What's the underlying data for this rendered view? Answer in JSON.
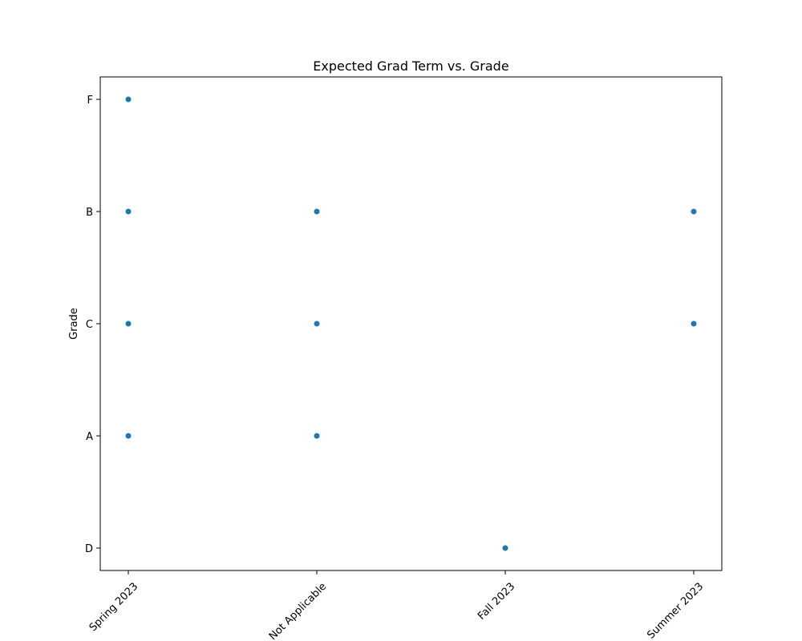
{
  "chart_data": {
    "type": "scatter",
    "title": "Expected Grad Term vs. Grade",
    "xlabel": "",
    "ylabel": "Grade",
    "x_categories": [
      "Spring 2023",
      "Not Applicable",
      "Fall 2023",
      "Summer 2023"
    ],
    "y_categories": [
      "D",
      "A",
      "C",
      "B",
      "F"
    ],
    "points": [
      {
        "x": "Spring 2023",
        "y": "F"
      },
      {
        "x": "Spring 2023",
        "y": "B"
      },
      {
        "x": "Spring 2023",
        "y": "C"
      },
      {
        "x": "Spring 2023",
        "y": "A"
      },
      {
        "x": "Not Applicable",
        "y": "B"
      },
      {
        "x": "Not Applicable",
        "y": "C"
      },
      {
        "x": "Not Applicable",
        "y": "A"
      },
      {
        "x": "Fall 2023",
        "y": "D"
      },
      {
        "x": "Summer 2023",
        "y": "B"
      },
      {
        "x": "Summer 2023",
        "y": "C"
      }
    ],
    "point_color": "#1f77b4",
    "grid": false,
    "legend": "none"
  }
}
